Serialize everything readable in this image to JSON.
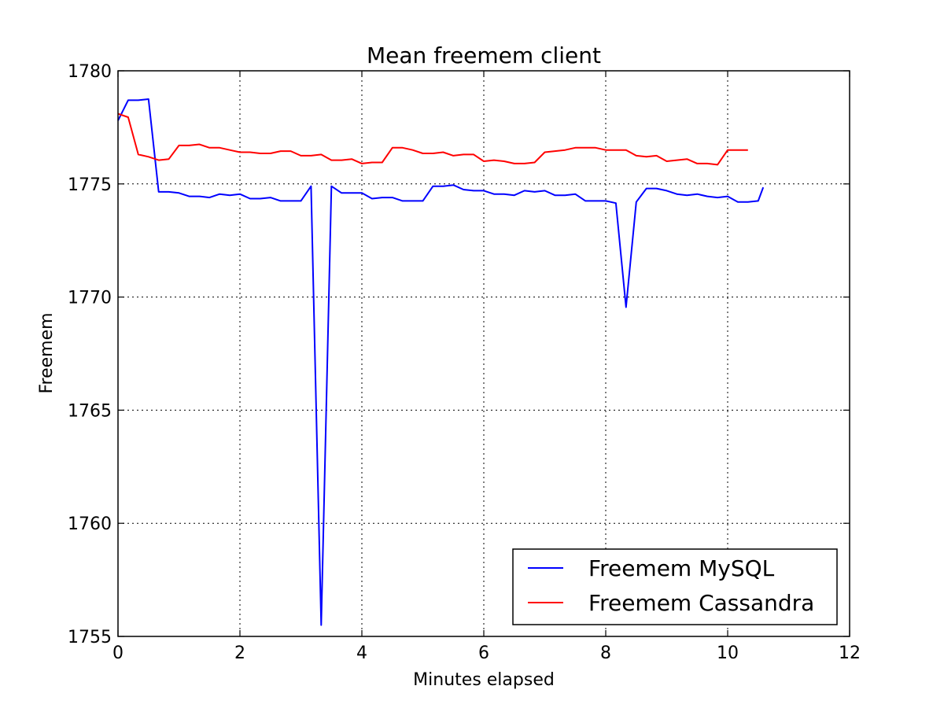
{
  "chart_data": {
    "type": "line",
    "title": "Mean freemem client",
    "xlabel": "Minutes elapsed",
    "ylabel": "Freemem",
    "xlim": [
      0,
      12
    ],
    "ylim": [
      1755,
      1780
    ],
    "xticks": [
      0,
      2,
      4,
      6,
      8,
      10,
      12
    ],
    "yticks": [
      1755,
      1760,
      1765,
      1770,
      1775,
      1780
    ],
    "grid": true,
    "legend_position": "lower-right",
    "series": [
      {
        "name": "Freemem MySQL",
        "color": "#0000ff",
        "x": [
          0,
          0.167,
          0.333,
          0.5,
          0.667,
          0.833,
          1.0,
          1.167,
          1.333,
          1.5,
          1.667,
          1.833,
          2.0,
          2.167,
          2.333,
          2.5,
          2.667,
          2.833,
          3.0,
          3.167,
          3.333,
          3.5,
          3.667,
          3.833,
          4.0,
          4.167,
          4.333,
          4.5,
          4.667,
          4.833,
          5.0,
          5.167,
          5.333,
          5.5,
          5.667,
          5.833,
          6.0,
          6.167,
          6.333,
          6.5,
          6.667,
          6.833,
          7.0,
          7.167,
          7.333,
          7.5,
          7.667,
          7.833,
          8.0,
          8.167,
          8.333,
          8.5,
          8.667,
          8.833,
          9.0,
          9.167,
          9.333,
          9.5,
          9.667,
          9.833,
          10.0,
          10.167,
          10.333,
          10.5,
          10.583
        ],
        "y": [
          1777.8,
          1778.7,
          1778.7,
          1778.75,
          1774.65,
          1774.65,
          1774.6,
          1774.45,
          1774.45,
          1774.4,
          1774.55,
          1774.5,
          1774.55,
          1774.35,
          1774.35,
          1774.4,
          1774.25,
          1774.25,
          1774.25,
          1774.9,
          1755.5,
          1774.9,
          1774.6,
          1774.6,
          1774.6,
          1774.35,
          1774.4,
          1774.4,
          1774.25,
          1774.25,
          1774.25,
          1774.9,
          1774.9,
          1774.95,
          1774.75,
          1774.7,
          1774.7,
          1774.55,
          1774.55,
          1774.5,
          1774.7,
          1774.65,
          1774.7,
          1774.5,
          1774.5,
          1774.55,
          1774.25,
          1774.25,
          1774.25,
          1774.15,
          1769.55,
          1774.2,
          1774.8,
          1774.8,
          1774.7,
          1774.55,
          1774.5,
          1774.55,
          1774.45,
          1774.4,
          1774.45,
          1774.2,
          1774.2,
          1774.25,
          1774.85
        ]
      },
      {
        "name": "Freemem Cassandra",
        "color": "#ff0000",
        "x": [
          0,
          0.167,
          0.333,
          0.5,
          0.667,
          0.833,
          1.0,
          1.167,
          1.333,
          1.5,
          1.667,
          1.833,
          2.0,
          2.167,
          2.333,
          2.5,
          2.667,
          2.833,
          3.0,
          3.167,
          3.333,
          3.5,
          3.667,
          3.833,
          4.0,
          4.167,
          4.333,
          4.5,
          4.667,
          4.833,
          5.0,
          5.167,
          5.333,
          5.5,
          5.667,
          5.833,
          6.0,
          6.167,
          6.333,
          6.5,
          6.667,
          6.833,
          7.0,
          7.167,
          7.333,
          7.5,
          7.667,
          7.833,
          8.0,
          8.167,
          8.333,
          8.5,
          8.667,
          8.833,
          9.0,
          9.167,
          9.333,
          9.5,
          9.667,
          9.833,
          10.0,
          10.167,
          10.333
        ],
        "y": [
          1778.1,
          1777.95,
          1776.3,
          1776.2,
          1776.05,
          1776.1,
          1776.7,
          1776.7,
          1776.75,
          1776.6,
          1776.6,
          1776.5,
          1776.4,
          1776.4,
          1776.35,
          1776.35,
          1776.45,
          1776.45,
          1776.25,
          1776.25,
          1776.3,
          1776.05,
          1776.05,
          1776.1,
          1775.9,
          1775.95,
          1775.95,
          1776.6,
          1776.6,
          1776.5,
          1776.35,
          1776.35,
          1776.4,
          1776.25,
          1776.3,
          1776.3,
          1776.0,
          1776.05,
          1776.0,
          1775.9,
          1775.9,
          1775.95,
          1776.4,
          1776.45,
          1776.5,
          1776.6,
          1776.6,
          1776.6,
          1776.5,
          1776.5,
          1776.5,
          1776.25,
          1776.2,
          1776.25,
          1776.0,
          1776.05,
          1776.1,
          1775.9,
          1775.9,
          1775.85,
          1776.5,
          1776.5,
          1776.5
        ]
      }
    ]
  }
}
